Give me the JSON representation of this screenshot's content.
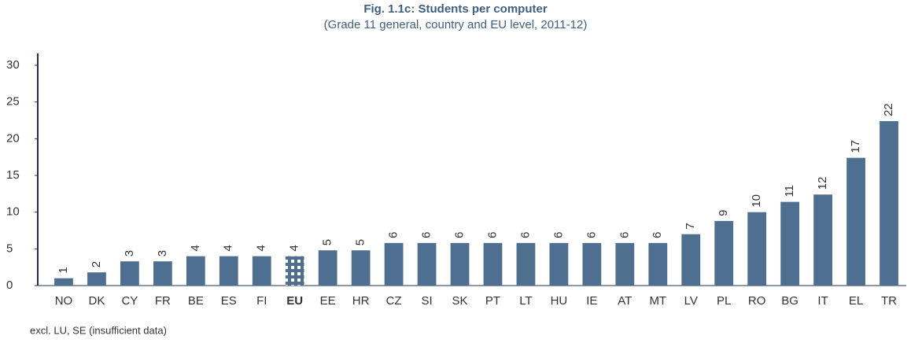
{
  "chart_data": {
    "type": "bar",
    "title": "Fig. 1.1c: Students per computer",
    "subtitle": "(Grade 11 general, country and EU level, 2011-12)",
    "categories": [
      "NO",
      "DK",
      "CY",
      "FR",
      "BE",
      "ES",
      "FI",
      "EU",
      "EE",
      "HR",
      "CZ",
      "SI",
      "SK",
      "PT",
      "LT",
      "HU",
      "IE",
      "AT",
      "MT",
      "LV",
      "PL",
      "RO",
      "BG",
      "IT",
      "EL",
      "TR"
    ],
    "values": [
      1,
      1.8,
      3.3,
      3.3,
      4,
      4,
      4,
      4,
      4.8,
      4.8,
      5.8,
      5.8,
      5.8,
      5.8,
      5.8,
      5.8,
      5.8,
      5.8,
      5.8,
      7,
      8.8,
      10,
      11.4,
      12.4,
      17.4,
      22.4
    ],
    "value_labels": [
      "1",
      "2",
      "3",
      "3",
      "4",
      "4",
      "4",
      "4",
      "5",
      "5",
      "6",
      "6",
      "6",
      "6",
      "6",
      "6",
      "6",
      "6",
      "6",
      "7",
      "9",
      "10",
      "11",
      "12",
      "17",
      "22"
    ],
    "color": "#4f6f90",
    "highlight": "EU",
    "ylim": [
      0,
      30
    ],
    "yticks": [
      0,
      5,
      10,
      15,
      20,
      25,
      30
    ],
    "grid": false,
    "note": "excl. LU, SE (insufficient data)"
  }
}
